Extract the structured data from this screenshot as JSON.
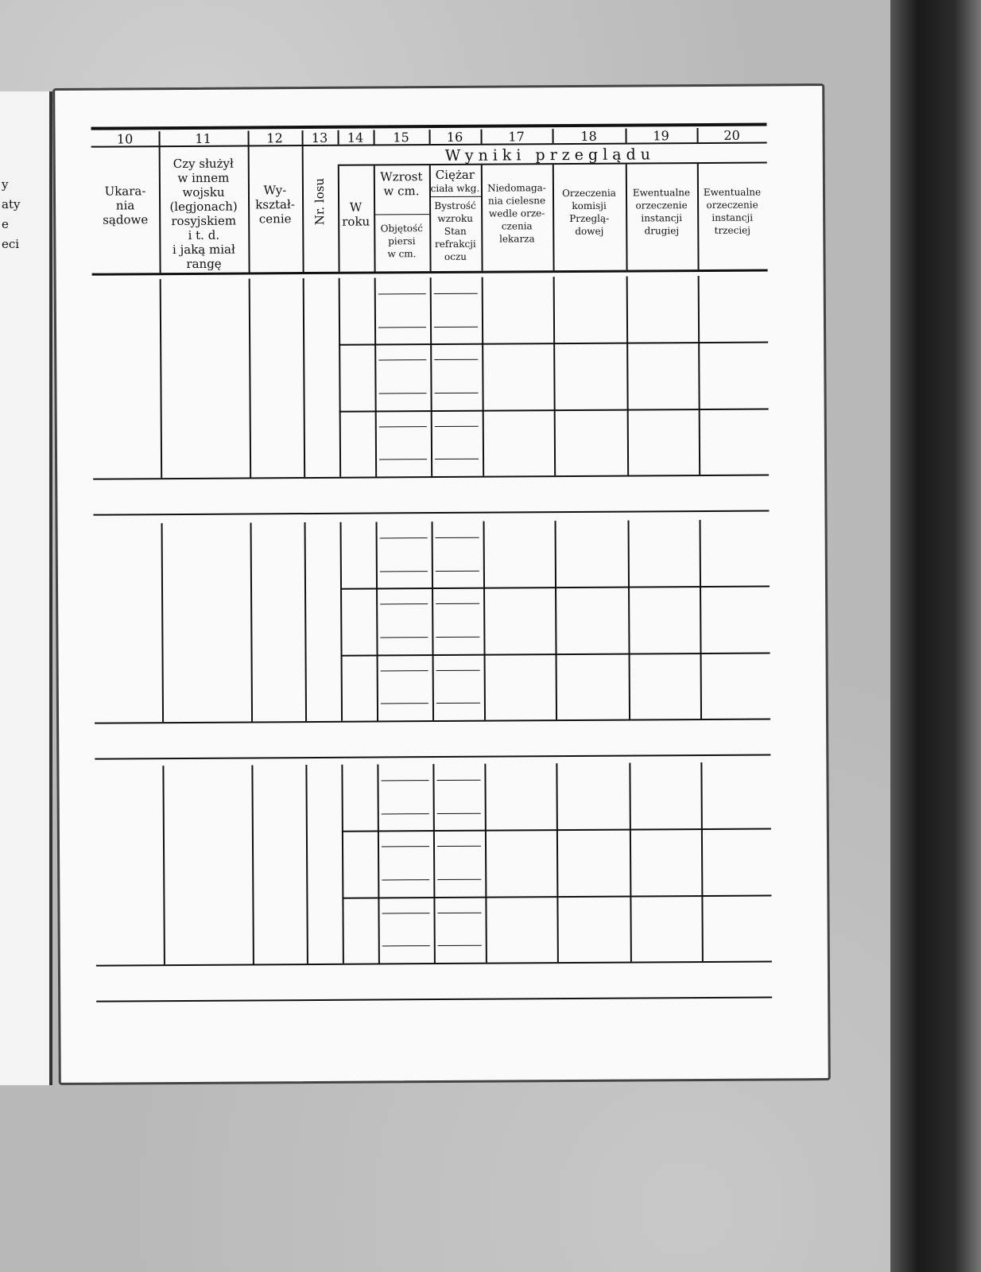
{
  "left_page_fragments": [
    "y",
    "aty",
    "e",
    "eci"
  ],
  "columns": {
    "numbers": [
      "10",
      "11",
      "12",
      "13",
      "14",
      "15",
      "16",
      "17",
      "18",
      "19",
      "20"
    ],
    "group_header": "Wyniki przeglądu",
    "c10": [
      "Ukara-",
      "nia",
      "sądowe"
    ],
    "c11": [
      "Czy służył",
      "w innem",
      "wojsku",
      "(legjonach)",
      "rosyjskiem",
      "i t. d.",
      "i jaką miał",
      "rangę"
    ],
    "c12": [
      "Wy-",
      "kształ-",
      "cenie"
    ],
    "c13": "Nr. losu",
    "c14": [
      "W",
      "roku"
    ],
    "c15_top": [
      "Wzrost",
      "w cm."
    ],
    "c15_bottom": [
      "Objętość",
      "piersi",
      "w cm."
    ],
    "c16_top": [
      "Ciężar",
      "ciała wkg."
    ],
    "c16_bottom": [
      "Bystrość",
      "wzroku",
      "Stan",
      "refrakcji",
      "oczu"
    ],
    "c17": [
      "Niedomaga-",
      "nia cielesne",
      "wedle orze-",
      "czenia",
      "lekarza"
    ],
    "c18": [
      "Orzeczenia",
      "komisji",
      "Przeglą-",
      "dowej"
    ],
    "c19": [
      "Ewentualne",
      "orzeczenie",
      "instancji",
      "drugiej"
    ],
    "c20": [
      "Ewentualne",
      "orzeczenie",
      "instancji",
      "trzeciej"
    ]
  }
}
